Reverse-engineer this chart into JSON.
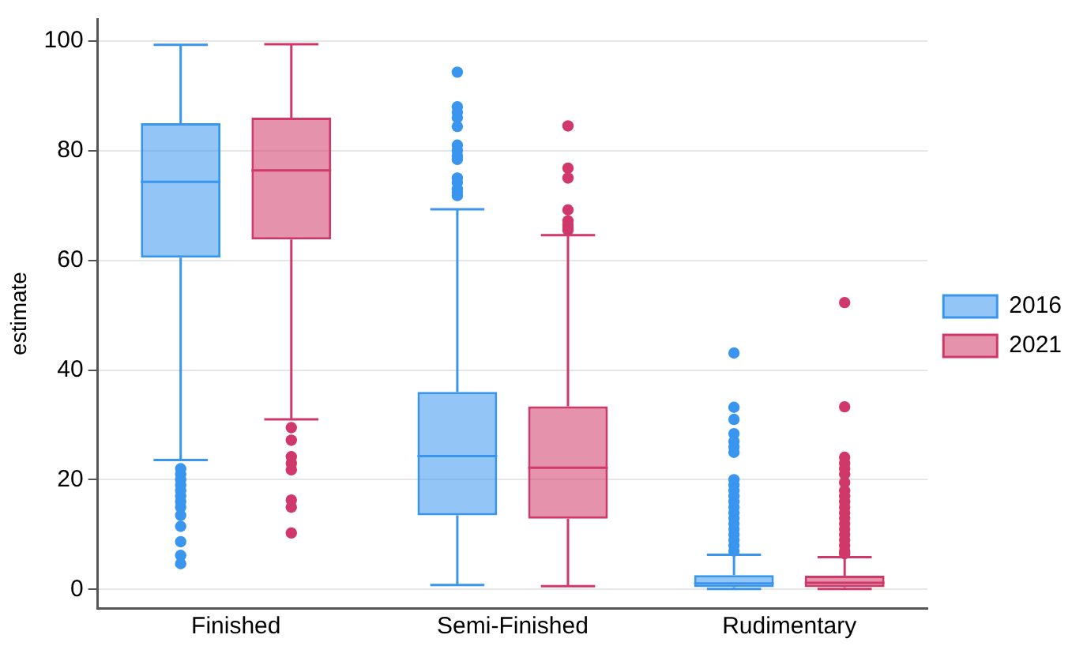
{
  "chart_data": {
    "type": "box",
    "ylabel": "estimate",
    "categories": [
      "Finished",
      "Semi-Finished",
      "Rudimentary"
    ],
    "ylim": [
      -3.4,
      104
    ],
    "yticks": [
      0,
      20,
      40,
      60,
      80,
      100
    ],
    "grid": "y",
    "legend": "right",
    "series": [
      {
        "name": "2016",
        "color": "#3a95ee",
        "boxes": [
          {
            "low": 23.6,
            "q1": 60.5,
            "median": 74.3,
            "q3": 85,
            "high": 99.3,
            "outliers": [
              22,
              21,
              20,
              19,
              18,
              17,
              16,
              15,
              13.5,
              11.5,
              8.7,
              6.2,
              4.7
            ]
          },
          {
            "low": 0.8,
            "q1": 13.5,
            "median": 24.3,
            "q3": 36,
            "high": 69.3,
            "outliers": [
              94.3,
              88,
              87,
              86,
              84.4,
              81,
              80,
              79,
              78.4,
              75,
              74.2,
              73,
              72.4,
              71.8
            ]
          },
          {
            "low": 0.1,
            "q1": 0.4,
            "median": 1.1,
            "q3": 2.6,
            "high": 6.3,
            "outliers": [
              43.1,
              33.2,
              31,
              28.4,
              27,
              26,
              25,
              20,
              19,
              18,
              17,
              16,
              15,
              14,
              13,
              12,
              11,
              10,
              9,
              8,
              7
            ]
          }
        ]
      },
      {
        "name": "2021",
        "color": "#d0386a",
        "boxes": [
          {
            "low": 31,
            "q1": 63.8,
            "median": 76.4,
            "q3": 86,
            "high": 99.4,
            "outliers": [
              29.5,
              27.2,
              24.2,
              23,
              21.8,
              16.3,
              15,
              10.3
            ]
          },
          {
            "low": 0.6,
            "q1": 12.9,
            "median": 22.2,
            "q3": 33.4,
            "high": 64.6,
            "outliers": [
              84.5,
              76.8,
              75,
              69.2,
              67.2,
              66.5,
              66,
              65.5
            ]
          },
          {
            "low": 0.1,
            "q1": 0.4,
            "median": 1.2,
            "q3": 2.5,
            "high": 5.9,
            "outliers": [
              52.3,
              33.3,
              24.1,
              23,
              22,
              21,
              19.5,
              18,
              17,
              16,
              15,
              14,
              13,
              12,
              11,
              10,
              9,
              8,
              7,
              6.5
            ]
          }
        ]
      }
    ]
  }
}
